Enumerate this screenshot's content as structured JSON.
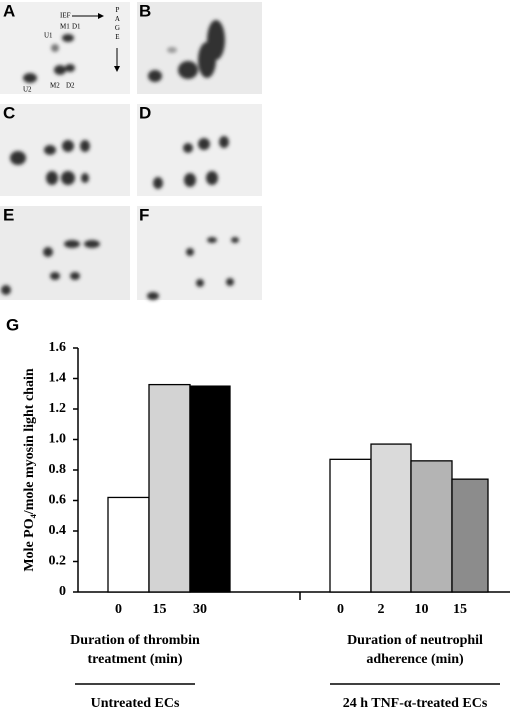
{
  "panels": {
    "labels": [
      "A",
      "B",
      "C",
      "D",
      "E",
      "F",
      "G"
    ],
    "a_annotations": {
      "ief": "IEF",
      "page": "PAGE",
      "spots": [
        "U1",
        "M1",
        "D1",
        "U2",
        "M2",
        "D2"
      ]
    }
  },
  "chart_data": {
    "type": "bar",
    "ylabel": "Mole PO₄/mole myosin light chain",
    "categories": [
      "0",
      "15",
      "30",
      "0",
      "2",
      "10",
      "15"
    ],
    "values": [
      0.62,
      1.36,
      1.35,
      0.87,
      0.97,
      0.86,
      0.74
    ],
    "colors": [
      "#ffffff",
      "#d3d3d3",
      "#000000",
      "#ffffff",
      "#dadada",
      "#b4b4b4",
      "#8c8c8c"
    ],
    "groups": [
      {
        "label": [
          "Duration of thrombin",
          "treatment (min)"
        ],
        "sublabel": "Untreated ECs"
      },
      {
        "label": [
          "Duration of neutrophil",
          "adherence (min)"
        ],
        "sublabel": "24 h TNF-α-treated ECs"
      }
    ],
    "ylim": [
      0,
      1.6
    ],
    "yticks": [
      0,
      0.2,
      0.4,
      0.6,
      {
        "value": 1,
        "label": "1.0"
      },
      0.8,
      1.2,
      1.4,
      1.6
    ]
  }
}
